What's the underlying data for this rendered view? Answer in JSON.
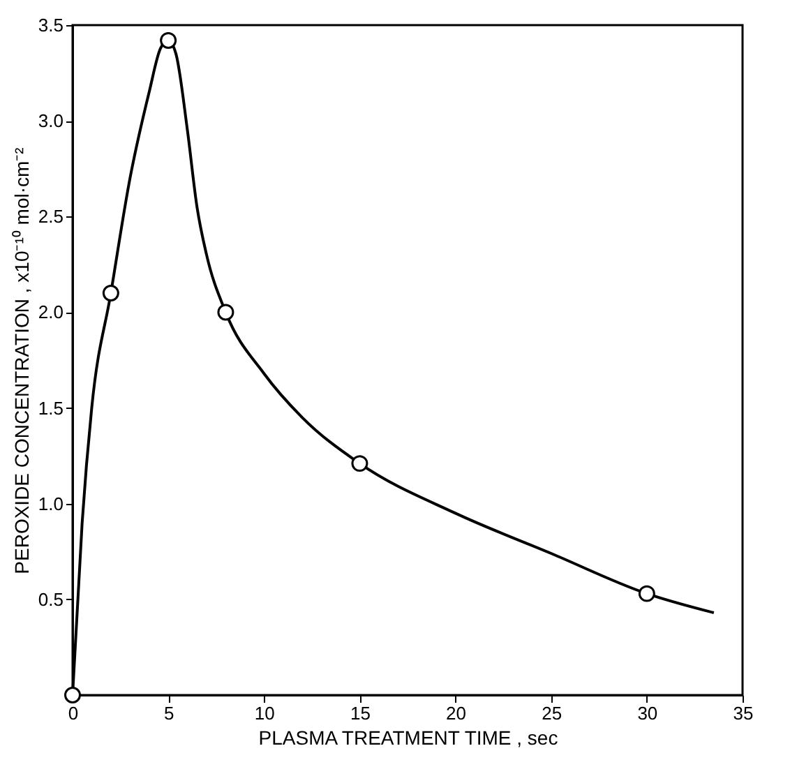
{
  "chart_data": {
    "type": "scatter",
    "xlabel": "PLASMA TREATMENT TIME , sec",
    "ylabel": "PEROXIDE CONCENTRATION , x10⁻¹⁰ mol·cm⁻²",
    "xlim": [
      0,
      35
    ],
    "xticks": [
      0,
      5,
      10,
      15,
      20,
      25,
      30,
      35
    ],
    "ylim": [
      0,
      3.5
    ],
    "yticks": [
      0.5,
      {
        "value": 1,
        "label": "1.0"
      },
      1.5,
      {
        "value": 2,
        "label": "2.0"
      },
      2.5,
      {
        "value": 3,
        "label": "3.0"
      },
      3.5
    ],
    "grid": false,
    "series": [
      {
        "type": "line",
        "color": "#000000",
        "marker": "none",
        "x": [
          0,
          0.5,
          1,
          2,
          3,
          4,
          4.6,
          5,
          5.4,
          6,
          6.5,
          7,
          8,
          10,
          12,
          15,
          20,
          25,
          30,
          33.5
        ],
        "values": [
          0,
          0.9,
          1.5,
          2.1,
          2.7,
          3.15,
          3.38,
          3.42,
          3.35,
          2.95,
          2.55,
          2.3,
          2.0,
          1.68,
          1.45,
          1.21,
          0.95,
          0.74,
          0.53,
          0.43
        ]
      },
      {
        "color": "#000000",
        "marker": "circle",
        "x": [
          0,
          2,
          5,
          8,
          15,
          30
        ],
        "values": [
          0,
          2.1,
          3.42,
          2.0,
          1.21,
          0.53
        ]
      }
    ]
  }
}
